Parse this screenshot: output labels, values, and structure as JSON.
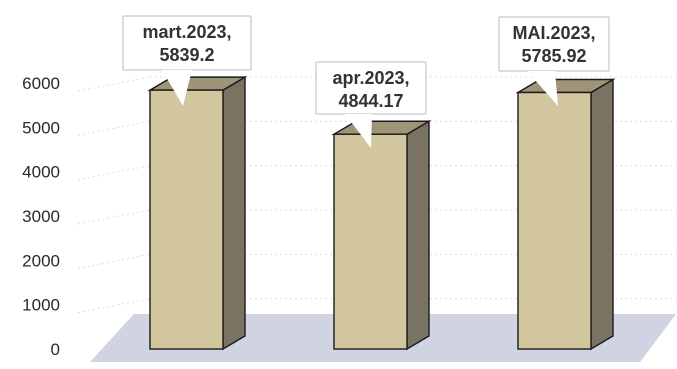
{
  "chart_data": {
    "type": "bar",
    "title": "",
    "xlabel": "",
    "ylabel": "",
    "categories": [
      "mart.2023",
      "apr.2023",
      "MAI.2023"
    ],
    "values": [
      5839.2,
      4844.17,
      5785.92
    ],
    "data_labels": [
      [
        "mart.2023,",
        "5839.2"
      ],
      [
        "apr.2023,",
        "4844.17"
      ],
      [
        "MAI.2023,",
        "5785.92"
      ]
    ],
    "yticks": [
      0,
      1000,
      2000,
      3000,
      4000,
      5000,
      6000
    ],
    "ylim": [
      0,
      6000
    ],
    "grid": true,
    "style": "3d-column",
    "colors": {
      "bar_front": "#d2c69f",
      "bar_side": "#7a7262",
      "bar_top": "#9e9478",
      "bar_stroke": "#1a1a1a",
      "floor": "#cfd3e2",
      "grid": "#dcdcdc",
      "label_bg": "#ffffff"
    }
  }
}
